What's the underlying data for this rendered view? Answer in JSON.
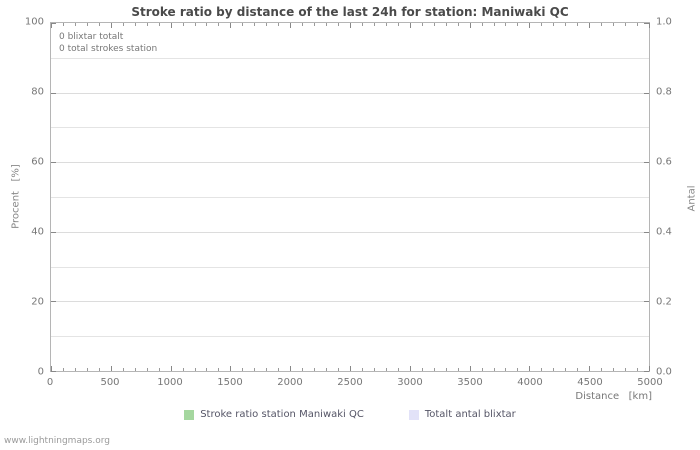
{
  "watermark": "www.lightningmaps.org",
  "chart_data": {
    "type": "line",
    "title": "Stroke ratio by distance of the last 24h for station: Maniwaki QC",
    "xlabel": "Distance   [km]",
    "ylabel_left": "Procent   [%]",
    "ylabel_right": "Antal",
    "xlim": [
      0,
      5000
    ],
    "x_ticks": [
      0,
      500,
      1000,
      1500,
      2000,
      2500,
      3000,
      3500,
      4000,
      4500,
      5000
    ],
    "x_minor_step": 100,
    "ylim_left": [
      0,
      100
    ],
    "y_ticks_left": [
      0,
      20,
      40,
      60,
      80,
      100
    ],
    "y_minor_step_left": 10,
    "ylim_right": [
      0.0,
      1.0
    ],
    "y_tick_labels_right": [
      "0.0",
      "0.2",
      "0.4",
      "0.6",
      "0.8",
      "1.0"
    ],
    "grid": "horizontal",
    "legend_position": "bottom-center",
    "annotations": [
      "0 blixtar totalt",
      "0 total strokes station"
    ],
    "series": [
      {
        "name": "Stroke ratio station Maniwaki QC",
        "color": "#a5d79f",
        "values": []
      },
      {
        "name": "Totalt antal blixtar",
        "color": "#e2e2f8",
        "values": []
      }
    ]
  }
}
